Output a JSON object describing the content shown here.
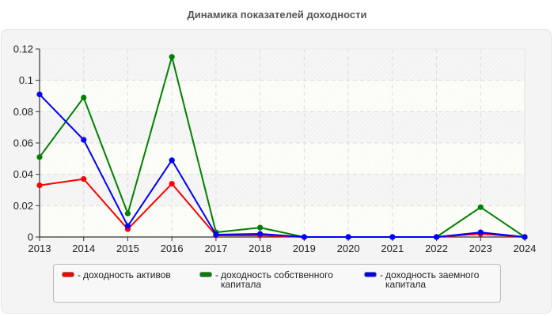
{
  "chart_data": {
    "type": "line",
    "title": "Динамика показателей доходности",
    "xlabel": "",
    "ylabel": "",
    "x": [
      "2013",
      "2014",
      "2015",
      "2016",
      "2017",
      "2018",
      "2019",
      "2020",
      "2021",
      "2022",
      "2023",
      "2024"
    ],
    "yticks": [
      "0",
      "0.02",
      "0.04",
      "0.06",
      "0.08",
      "0.1",
      "0.12"
    ],
    "ylim": [
      0,
      0.12
    ],
    "grid": true,
    "legend_position": "bottom",
    "series": [
      {
        "name": "доходность активов",
        "color": "#ff0000",
        "values": [
          0.033,
          0.037,
          0.005,
          0.034,
          0.001,
          0.001,
          0,
          0,
          0,
          0,
          0.002,
          0
        ]
      },
      {
        "name": "доходность собственного капитала",
        "color": "#008000",
        "values": [
          0.051,
          0.089,
          0.015,
          0.115,
          0.003,
          0.006,
          0,
          0,
          0,
          0,
          0.019,
          0
        ]
      },
      {
        "name": "доходность заемного капитала",
        "color": "#0000ff",
        "values": [
          0.091,
          0.062,
          0.007,
          0.049,
          0.0015,
          0.002,
          0,
          0,
          0,
          0,
          0.003,
          0
        ]
      }
    ]
  },
  "legend": {
    "items": [
      {
        "dash": "-",
        "label": "доходность активов",
        "color": "#ff0000"
      },
      {
        "dash": "-",
        "label": "доходность собственного капитала",
        "color": "#008000"
      },
      {
        "dash": "-",
        "label": "доходность заемного капитала",
        "color": "#0000ff"
      }
    ]
  }
}
